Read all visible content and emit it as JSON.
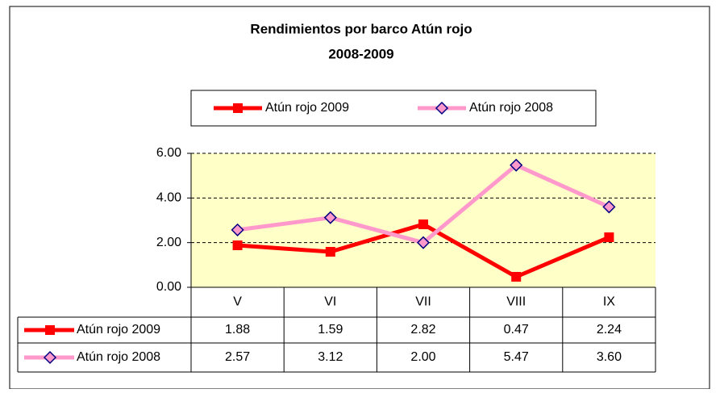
{
  "chart_data": {
    "type": "line",
    "title": [
      "Rendimientos por barco Atún rojo",
      "2008-2009"
    ],
    "categories": [
      "V",
      "VI",
      "VII",
      "VIII",
      "IX"
    ],
    "series": [
      {
        "name": "Atún rojo 2009",
        "color": "#ff0000",
        "marker": "square",
        "values": [
          1.88,
          1.59,
          2.82,
          0.47,
          2.24
        ],
        "value_labels": [
          "1.88",
          "1.59",
          "2.82",
          "0.47",
          "2.24"
        ]
      },
      {
        "name": "Atún rojo 2008",
        "color": "#ff99cc",
        "marker": "diamond",
        "values": [
          2.57,
          3.12,
          2.0,
          5.47,
          3.6
        ],
        "value_labels": [
          "2.57",
          "3.12",
          "2.00",
          "5.47",
          "3.60"
        ]
      }
    ],
    "ylim": [
      0,
      6
    ],
    "yticks": [
      {
        "value": 0,
        "label": "0.00"
      },
      {
        "value": 2,
        "label": "2.00"
      },
      {
        "value": 4,
        "label": "4.00"
      },
      {
        "value": 6,
        "label": "6.00"
      }
    ],
    "grid": true,
    "legend": "top",
    "data_table": true
  }
}
